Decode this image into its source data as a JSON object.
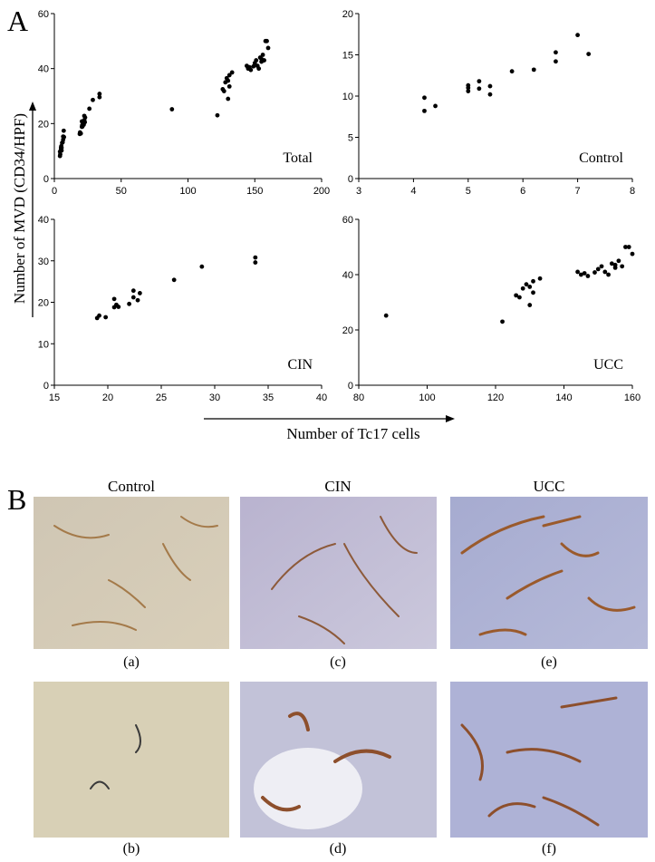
{
  "panel_a": "A",
  "panel_b": "B",
  "y_label": "Number of MVD (CD34/HPF)",
  "x_label": "Number of Tc17 cells",
  "chart_data": [
    {
      "type": "scatter",
      "annotation": "Total",
      "color": "#000000",
      "x": [
        4.2,
        4.2,
        4.4,
        5,
        5,
        5,
        5.2,
        5.2,
        5.4,
        5.4,
        5.8,
        6.2,
        6.6,
        6.6,
        7,
        7.2,
        19,
        19.2,
        19.8,
        20.6,
        20.6,
        20.8,
        21,
        22,
        22.4,
        22.4,
        22.8,
        23,
        26.2,
        28.8,
        33.8,
        33.8,
        88,
        122,
        126,
        127,
        128,
        129,
        130,
        130,
        131,
        131,
        133,
        144,
        145,
        146,
        147,
        149,
        150,
        151,
        152,
        153,
        154,
        155,
        155,
        156,
        157,
        158,
        159,
        160
      ],
      "values": [
        9.8,
        8.2,
        8.8,
        11.3,
        11,
        10.6,
        11.8,
        10.9,
        11.2,
        10.2,
        13,
        13.2,
        15.3,
        14.2,
        17.4,
        15.1,
        16.2,
        16.8,
        16.4,
        18.8,
        20.8,
        19.4,
        18.9,
        19.6,
        21.2,
        22.8,
        20.5,
        22.2,
        25.4,
        28.6,
        29.6,
        30.8,
        25.2,
        23,
        32.5,
        31.8,
        35,
        36.5,
        29,
        35.6,
        33.5,
        37.6,
        38.6,
        41,
        40,
        40.5,
        39.5,
        40.8,
        42,
        43,
        41,
        40,
        44,
        42.5,
        43.5,
        45,
        43,
        50,
        50,
        47.5
      ],
      "xlim": [
        0,
        200
      ],
      "ylim": [
        0,
        60
      ],
      "xticks": [
        0,
        50,
        100,
        150,
        200
      ],
      "yticks": [
        0,
        20,
        40,
        60
      ]
    },
    {
      "type": "scatter",
      "annotation": "Control",
      "color": "#000000",
      "x": [
        4.2,
        4.2,
        4.4,
        5,
        5,
        5,
        5.2,
        5.2,
        5.4,
        5.4,
        5.8,
        6.2,
        6.6,
        6.6,
        7,
        7.2
      ],
      "values": [
        9.8,
        8.2,
        8.8,
        11.3,
        11,
        10.6,
        11.8,
        10.9,
        11.2,
        10.2,
        13,
        13.2,
        15.3,
        14.2,
        17.4,
        15.1
      ],
      "xlim": [
        3,
        8
      ],
      "ylim": [
        0,
        20
      ],
      "xticks": [
        3,
        4,
        5,
        6,
        7,
        8
      ],
      "yticks": [
        0,
        5,
        10,
        15,
        20
      ]
    },
    {
      "type": "scatter",
      "annotation": "CIN",
      "color": "#000000",
      "x": [
        19,
        19.2,
        19.8,
        20.6,
        20.6,
        20.8,
        21,
        22,
        22.4,
        22.4,
        22.8,
        23,
        26.2,
        28.8,
        33.8,
        33.8
      ],
      "values": [
        16.2,
        16.8,
        16.4,
        18.8,
        20.8,
        19.4,
        18.9,
        19.6,
        21.2,
        22.8,
        20.5,
        22.2,
        25.4,
        28.6,
        29.6,
        30.8
      ],
      "xlim": [
        15,
        40
      ],
      "ylim": [
        0,
        40
      ],
      "xticks": [
        15,
        20,
        25,
        30,
        35,
        40
      ],
      "yticks": [
        0,
        10,
        20,
        30,
        40
      ]
    },
    {
      "type": "scatter",
      "annotation": "UCC",
      "color": "#000000",
      "x": [
        88,
        122,
        126,
        127,
        128,
        129,
        130,
        130,
        131,
        131,
        133,
        144,
        145,
        146,
        147,
        149,
        150,
        151,
        152,
        153,
        154,
        155,
        155,
        156,
        157,
        158,
        159,
        160
      ],
      "values": [
        25.2,
        23,
        32.5,
        31.8,
        35,
        36.5,
        29,
        35.6,
        33.5,
        37.6,
        38.6,
        41,
        40,
        40.5,
        39.5,
        40.8,
        42,
        43,
        41,
        40,
        44,
        42.5,
        43.5,
        45,
        43,
        50,
        50,
        47.5
      ],
      "xlim": [
        80,
        160
      ],
      "ylim": [
        0,
        60
      ],
      "xticks": [
        80,
        100,
        120,
        140,
        160
      ],
      "yticks": [
        0,
        20,
        40,
        60
      ]
    }
  ],
  "images": {
    "headings": [
      "Control",
      "CIN",
      "UCC"
    ],
    "captions": [
      "(a)",
      "(c)",
      "(e)",
      "(b)",
      "(d)",
      "(f)"
    ]
  }
}
